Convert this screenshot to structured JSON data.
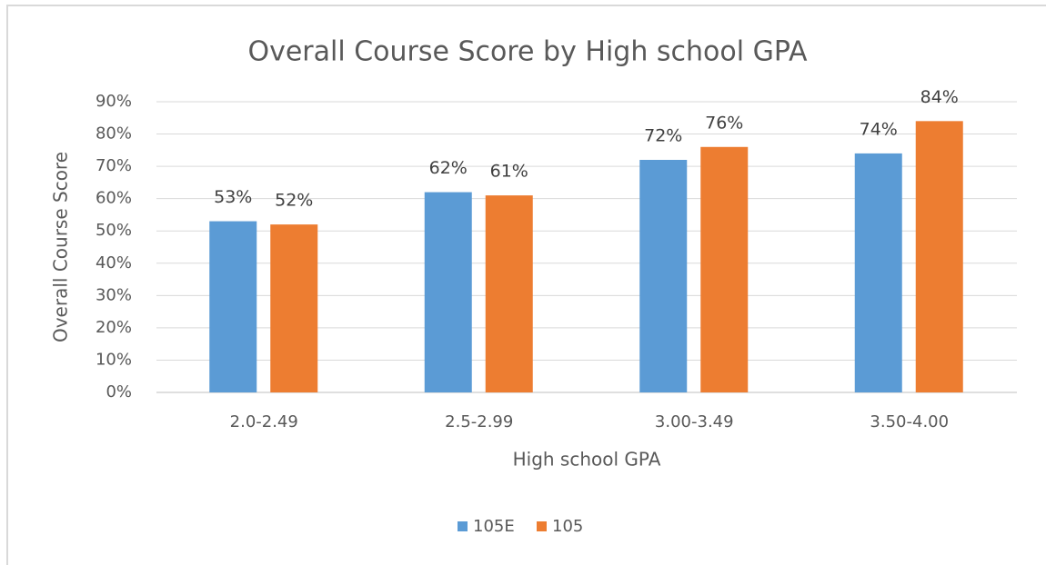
{
  "chart_data": {
    "type": "bar",
    "title": "Overall Course Score by High school GPA",
    "x_label": "High school GPA",
    "y_label": "Overall Course Score",
    "categories": [
      "2.0-2.49",
      "2.5-2.99",
      "3.00-3.49",
      "3.50-4.00"
    ],
    "series": [
      {
        "name": "105E",
        "color": "#5b9bd5",
        "values": [
          53,
          62,
          72,
          74
        ],
        "value_labels": [
          "53%",
          "62%",
          "72%",
          "74%"
        ]
      },
      {
        "name": "105",
        "color": "#ed7d31",
        "values": [
          52,
          61,
          76,
          84
        ],
        "value_labels": [
          "52%",
          "61%",
          "76%",
          "84%"
        ]
      }
    ],
    "ylim": [
      0,
      90
    ],
    "yticks": [
      {
        "value": 0,
        "label": "0%"
      },
      {
        "value": 10,
        "label": "10%"
      },
      {
        "value": 20,
        "label": "20%"
      },
      {
        "value": 30,
        "label": "30%"
      },
      {
        "value": 40,
        "label": "40%"
      },
      {
        "value": 50,
        "label": "50%"
      },
      {
        "value": 60,
        "label": "60%"
      },
      {
        "value": 70,
        "label": "70%"
      },
      {
        "value": 80,
        "label": "80%"
      },
      {
        "value": 90,
        "label": "90%"
      }
    ],
    "grid": true,
    "legend": "bottom"
  }
}
